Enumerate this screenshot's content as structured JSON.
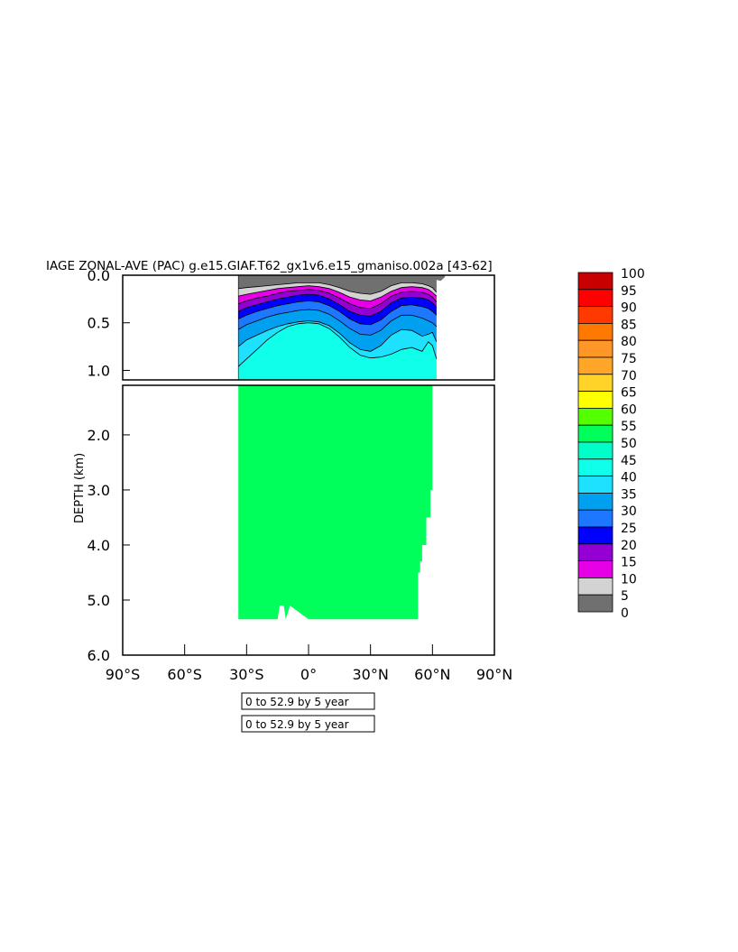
{
  "chart_data": {
    "type": "heatmap",
    "title": "IAGE ZONAL-AVE (PAC) g.e15.GIAF.T62_gx1v6.e15_gmaniso.002a [43-62]",
    "ylabel": "DEPTH (km)",
    "xlabel": "",
    "x_ticks": [
      "90°S",
      "60°S",
      "30°S",
      "0°",
      "30°N",
      "60°N",
      "90°N"
    ],
    "x_tick_values": [
      -90,
      -60,
      -30,
      0,
      30,
      60,
      90
    ],
    "upper_panel": {
      "ylim": [
        0,
        1.1
      ],
      "y_ticks": [
        "0.0",
        "0.5",
        "1.0"
      ],
      "y_tick_values": [
        0,
        0.5,
        1.0
      ]
    },
    "lower_panel": {
      "ylim": [
        1.1,
        6.0
      ],
      "y_ticks": [
        "2.0",
        "3.0",
        "4.0",
        "5.0",
        "6.0"
      ],
      "y_tick_values": [
        2,
        3,
        4,
        5,
        6
      ]
    },
    "xlim": [
      -90,
      90
    ],
    "levels": [
      0,
      5,
      10,
      15,
      20,
      25,
      30,
      35,
      40,
      45,
      50,
      55,
      60,
      65,
      70,
      75,
      80,
      85,
      90,
      95,
      100
    ],
    "colors": [
      "#707070",
      "#d3d3d3",
      "#e600e6",
      "#9400d3",
      "#0000ff",
      "#1e78ff",
      "#00a0f0",
      "#1ee1ff",
      "#10ffeb",
      "#00ffc8",
      "#00ff5a",
      "#54ff00",
      "#ffff00",
      "#ffd328",
      "#ffa528",
      "#ff9628",
      "#ff7800",
      "#ff3a00",
      "#ff0000",
      "#c80000"
    ],
    "colorbar_labels": [
      "100",
      "95",
      "90",
      "85",
      "80",
      "75",
      "70",
      "65",
      "60",
      "55",
      "50",
      "45",
      "40",
      "35",
      "30",
      "25",
      "20",
      "15",
      "10",
      "5",
      "0"
    ],
    "contour_lat": [
      -34,
      -30,
      -25,
      -20,
      -15,
      -10,
      -5,
      0,
      5,
      10,
      15,
      20,
      25,
      30,
      35,
      40,
      45,
      50,
      55,
      58,
      60,
      62
    ],
    "contour_depths_km": [
      {
        "level": 5,
        "depth": [
          0.14,
          0.13,
          0.12,
          0.11,
          0.1,
          0.09,
          0.08,
          0.08,
          0.08,
          0.1,
          0.13,
          0.17,
          0.19,
          0.2,
          0.17,
          0.11,
          0.08,
          0.08,
          0.09,
          0.11,
          0.13,
          0.18
        ]
      },
      {
        "level": 10,
        "depth": [
          0.22,
          0.2,
          0.18,
          0.16,
          0.14,
          0.13,
          0.12,
          0.11,
          0.12,
          0.14,
          0.18,
          0.23,
          0.26,
          0.27,
          0.23,
          0.17,
          0.13,
          0.12,
          0.13,
          0.15,
          0.18,
          0.22
        ]
      },
      {
        "level": 15,
        "depth": [
          0.3,
          0.27,
          0.24,
          0.22,
          0.19,
          0.17,
          0.16,
          0.15,
          0.16,
          0.19,
          0.24,
          0.3,
          0.34,
          0.35,
          0.3,
          0.22,
          0.18,
          0.17,
          0.18,
          0.2,
          0.23,
          0.28
        ]
      },
      {
        "level": 20,
        "depth": [
          0.38,
          0.34,
          0.31,
          0.28,
          0.25,
          0.23,
          0.21,
          0.2,
          0.21,
          0.25,
          0.31,
          0.38,
          0.42,
          0.43,
          0.38,
          0.29,
          0.24,
          0.23,
          0.24,
          0.26,
          0.29,
          0.34
        ]
      },
      {
        "level": 25,
        "depth": [
          0.46,
          0.42,
          0.38,
          0.35,
          0.32,
          0.3,
          0.28,
          0.27,
          0.28,
          0.32,
          0.38,
          0.46,
          0.51,
          0.52,
          0.47,
          0.38,
          0.32,
          0.31,
          0.33,
          0.35,
          0.38,
          0.42
        ]
      },
      {
        "level": 30,
        "depth": [
          0.57,
          0.52,
          0.48,
          0.44,
          0.41,
          0.39,
          0.37,
          0.36,
          0.37,
          0.41,
          0.48,
          0.56,
          0.62,
          0.63,
          0.58,
          0.48,
          0.42,
          0.42,
          0.45,
          0.48,
          0.5,
          0.54
        ]
      },
      {
        "level": 35,
        "depth": [
          0.75,
          0.68,
          0.63,
          0.58,
          0.54,
          0.51,
          0.49,
          0.48,
          0.49,
          0.53,
          0.61,
          0.71,
          0.78,
          0.8,
          0.74,
          0.63,
          0.57,
          0.58,
          0.64,
          0.62,
          0.6,
          0.7
        ]
      },
      {
        "level": 40,
        "depth": [
          0.96,
          0.88,
          0.78,
          0.68,
          0.6,
          0.54,
          0.51,
          0.5,
          0.51,
          0.56,
          0.65,
          0.76,
          0.84,
          0.87,
          0.86,
          0.83,
          0.78,
          0.76,
          0.8,
          0.7,
          0.74,
          0.88
        ]
      }
    ],
    "green_bottom": {
      "lat": [
        -34,
        -20,
        -15,
        -14,
        -12,
        -11,
        -9,
        0,
        20,
        40,
        50,
        52,
        53,
        53
      ],
      "depth_km": [
        5.35,
        5.35,
        5.35,
        5.1,
        5.1,
        5.35,
        5.1,
        5.35,
        5.35,
        5.35,
        5.35,
        5.35,
        5.35,
        5.35
      ]
    },
    "green_east_edge": {
      "depth_km": [
        1.1,
        2.0,
        3.0,
        3.5,
        4.0,
        4.3,
        4.5,
        5.0,
        5.35
      ],
      "lat": [
        61,
        60,
        60,
        59,
        57,
        55,
        54,
        53,
        53
      ]
    }
  },
  "time_boxes": [
    "0 to 52.9 by 5 year",
    "0 to 52.9 by 5 year"
  ]
}
